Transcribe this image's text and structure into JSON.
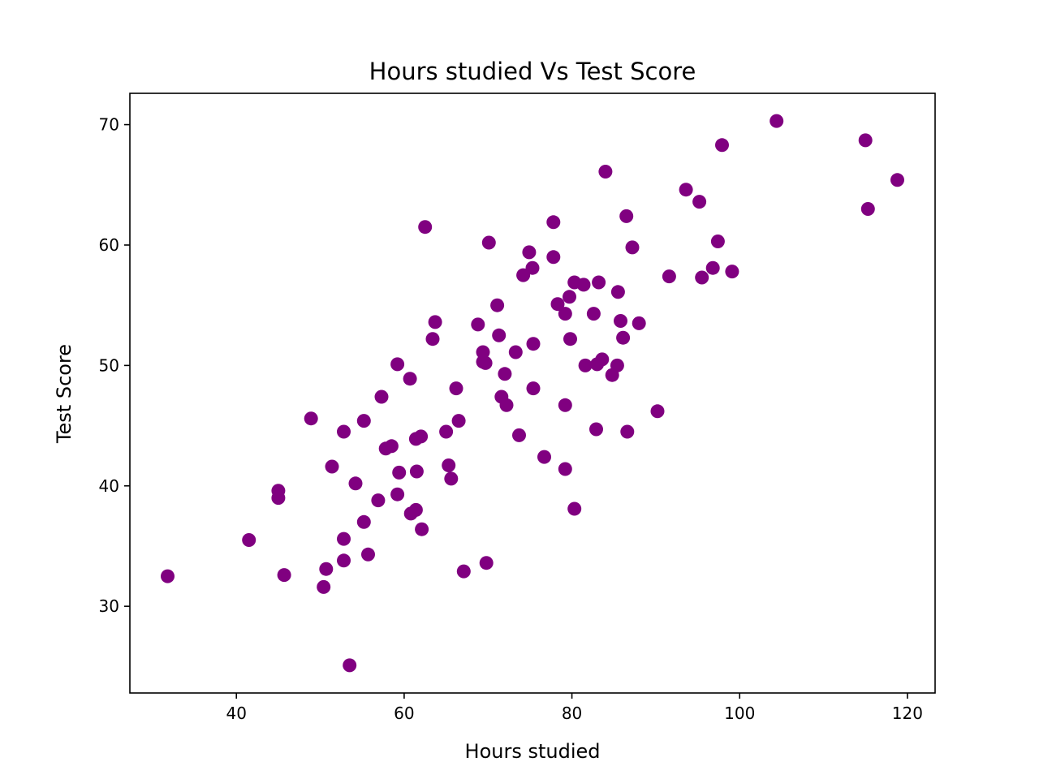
{
  "chart_data": {
    "type": "scatter",
    "title": "Hours studied Vs Test Score",
    "xlabel": "Hours studied",
    "ylabel": "Test Score",
    "xlim": [
      27.3,
      123.3
    ],
    "ylim": [
      22.8,
      72.6
    ],
    "xticks": [
      40,
      60,
      80,
      100,
      120
    ],
    "yticks": [
      30,
      40,
      50,
      60,
      70
    ],
    "xtick_labels": [
      "40",
      "60",
      "80",
      "100",
      "120"
    ],
    "ytick_labels": [
      "30",
      "40",
      "50",
      "60",
      "70"
    ],
    "grid": false,
    "legend": "none",
    "marker_color": "#800080",
    "series": [
      {
        "points": [
          [
            31.8,
            32.5
          ],
          [
            41.5,
            35.5
          ],
          [
            45.0,
            39.6
          ],
          [
            45.0,
            39.0
          ],
          [
            45.7,
            32.6
          ],
          [
            48.9,
            45.6
          ],
          [
            50.4,
            31.6
          ],
          [
            50.7,
            33.1
          ],
          [
            51.4,
            41.6
          ],
          [
            52.8,
            35.6
          ],
          [
            52.8,
            33.8
          ],
          [
            52.8,
            44.5
          ],
          [
            53.5,
            25.1
          ],
          [
            54.2,
            40.2
          ],
          [
            55.2,
            37.0
          ],
          [
            55.2,
            45.4
          ],
          [
            55.7,
            34.3
          ],
          [
            56.9,
            38.8
          ],
          [
            57.3,
            47.4
          ],
          [
            57.8,
            43.1
          ],
          [
            58.5,
            43.3
          ],
          [
            59.2,
            39.3
          ],
          [
            59.4,
            41.1
          ],
          [
            59.2,
            50.1
          ],
          [
            60.7,
            48.9
          ],
          [
            60.8,
            37.7
          ],
          [
            61.4,
            38.0
          ],
          [
            61.5,
            41.2
          ],
          [
            61.4,
            43.9
          ],
          [
            62.0,
            44.1
          ],
          [
            62.1,
            36.4
          ],
          [
            62.5,
            61.5
          ],
          [
            63.4,
            52.2
          ],
          [
            63.7,
            53.6
          ],
          [
            65.0,
            44.5
          ],
          [
            65.3,
            41.7
          ],
          [
            65.6,
            40.6
          ],
          [
            66.2,
            48.1
          ],
          [
            66.5,
            45.4
          ],
          [
            67.1,
            32.9
          ],
          [
            68.8,
            53.4
          ],
          [
            69.4,
            50.3
          ],
          [
            69.4,
            51.1
          ],
          [
            69.7,
            50.2
          ],
          [
            69.8,
            33.6
          ],
          [
            70.1,
            60.2
          ],
          [
            71.1,
            55.0
          ],
          [
            71.3,
            52.5
          ],
          [
            71.6,
            47.4
          ],
          [
            72.0,
            49.3
          ],
          [
            72.2,
            46.7
          ],
          [
            73.3,
            51.1
          ],
          [
            73.7,
            44.2
          ],
          [
            74.2,
            57.5
          ],
          [
            74.9,
            59.4
          ],
          [
            75.3,
            58.1
          ],
          [
            75.4,
            51.8
          ],
          [
            75.4,
            48.1
          ],
          [
            76.7,
            42.4
          ],
          [
            77.8,
            59.0
          ],
          [
            77.8,
            61.9
          ],
          [
            78.3,
            55.1
          ],
          [
            79.2,
            54.3
          ],
          [
            79.2,
            46.7
          ],
          [
            79.2,
            41.4
          ],
          [
            79.7,
            55.7
          ],
          [
            79.8,
            52.2
          ],
          [
            80.3,
            56.9
          ],
          [
            80.3,
            38.1
          ],
          [
            81.4,
            56.7
          ],
          [
            81.6,
            50.0
          ],
          [
            82.6,
            54.3
          ],
          [
            82.9,
            44.7
          ],
          [
            83.0,
            50.1
          ],
          [
            83.2,
            56.9
          ],
          [
            83.6,
            50.5
          ],
          [
            84.0,
            66.1
          ],
          [
            84.8,
            49.2
          ],
          [
            85.4,
            50.0
          ],
          [
            85.5,
            56.1
          ],
          [
            85.8,
            53.7
          ],
          [
            86.1,
            52.3
          ],
          [
            86.5,
            62.4
          ],
          [
            86.6,
            44.5
          ],
          [
            87.2,
            59.8
          ],
          [
            88.0,
            53.5
          ],
          [
            90.2,
            46.2
          ],
          [
            91.6,
            57.4
          ],
          [
            93.6,
            64.6
          ],
          [
            95.2,
            63.6
          ],
          [
            95.5,
            57.3
          ],
          [
            96.8,
            58.1
          ],
          [
            97.4,
            60.3
          ],
          [
            97.9,
            68.3
          ],
          [
            99.1,
            57.8
          ],
          [
            104.4,
            70.3
          ],
          [
            115.0,
            68.7
          ],
          [
            115.3,
            63.0
          ],
          [
            118.8,
            65.4
          ]
        ]
      }
    ]
  }
}
